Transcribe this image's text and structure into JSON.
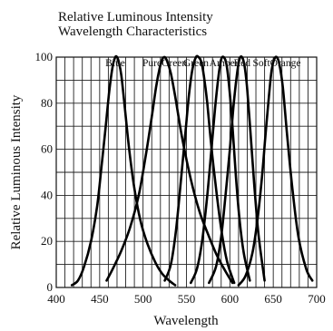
{
  "chart_data": {
    "type": "line",
    "title": "Relative Luminous Intensity",
    "subtitle": "Wavelength Characteristics",
    "xlabel": "Wavelength",
    "ylabel": "Relative Luminous Intensity",
    "xlim": [
      400,
      700
    ],
    "ylim": [
      0,
      100
    ],
    "x_ticks": [
      400,
      450,
      500,
      550,
      600,
      650,
      700
    ],
    "y_ticks": [
      0,
      20,
      40,
      60,
      80,
      100
    ],
    "grid": true,
    "legend": "labels above peaks",
    "series": [
      {
        "name": "Blue",
        "x": [
          418,
          425,
          432,
          440,
          447,
          452,
          457,
          461,
          465,
          468,
          470,
          472,
          475,
          479,
          484,
          490,
          497,
          505,
          514,
          522,
          530,
          537
        ],
        "y": [
          1,
          3,
          9,
          20,
          35,
          52,
          70,
          85,
          96,
          100,
          100,
          98,
          92,
          78,
          60,
          43,
          29,
          19,
          11,
          6,
          3,
          1
        ]
      },
      {
        "name": "Pure Green",
        "x": [
          458,
          465,
          475,
          485,
          495,
          503,
          510,
          515,
          519,
          522,
          525,
          528,
          532,
          537,
          545,
          555,
          565,
          575,
          585,
          595,
          603
        ],
        "y": [
          3,
          8,
          16,
          26,
          40,
          57,
          74,
          87,
          95,
          99,
          100,
          98,
          93,
          83,
          65,
          47,
          33,
          23,
          14,
          7,
          2
        ]
      },
      {
        "name": "Green",
        "x": [
          525,
          532,
          538,
          544,
          549,
          553,
          557,
          561,
          564,
          567,
          570,
          574,
          579,
          585,
          591,
          597,
          605
        ],
        "y": [
          3,
          10,
          25,
          48,
          68,
          84,
          95,
          100,
          100,
          98,
          92,
          80,
          60,
          40,
          23,
          11,
          2
        ]
      },
      {
        "name": "Amber",
        "x": [
          555,
          562,
          568,
          574,
          579,
          583,
          587,
          590,
          593,
          596,
          599,
          603,
          607,
          611,
          616,
          623
        ],
        "y": [
          2,
          8,
          20,
          40,
          61,
          78,
          92,
          99,
          100,
          97,
          88,
          70,
          48,
          30,
          15,
          3
        ]
      },
      {
        "name": "Red",
        "x": [
          576,
          584,
          590,
          595,
          600,
          604,
          608,
          611,
          614,
          617,
          620,
          624,
          628,
          633,
          640
        ],
        "y": [
          2,
          9,
          22,
          40,
          60,
          78,
          92,
          99,
          100,
          96,
          86,
          66,
          45,
          23,
          3
        ]
      },
      {
        "name": "Soft Orange",
        "x": [
          610,
          618,
          626,
          632,
          637,
          641,
          645,
          648,
          651,
          654,
          657,
          661,
          666,
          672,
          679,
          688,
          695
        ],
        "y": [
          1,
          5,
          15,
          30,
          48,
          66,
          83,
          94,
          99,
          100,
          97,
          87,
          66,
          43,
          22,
          8,
          3
        ]
      }
    ],
    "peak_labels": [
      "Blue",
      "PureGreen",
      "Green",
      "Amber",
      "Red",
      "SoftOrange"
    ]
  }
}
